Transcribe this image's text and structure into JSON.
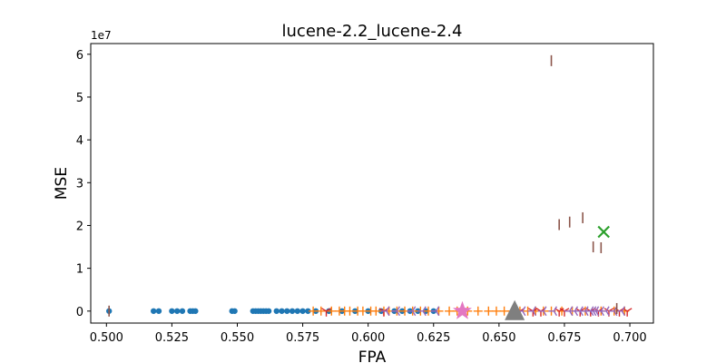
{
  "chart_data": {
    "type": "scatter",
    "title": "lucene-2.2_lucene-2.4",
    "xlabel": "FPA",
    "ylabel": "MSE",
    "y_offset_text": "1e7",
    "xlim": [
      0.494,
      0.709
    ],
    "ylim": [
      -2800000,
      62500000
    ],
    "x_ticks": [
      0.5,
      0.525,
      0.55,
      0.575,
      0.6,
      0.625,
      0.65,
      0.675,
      0.7
    ],
    "x_tick_labels": [
      "0.500",
      "0.525",
      "0.550",
      "0.575",
      "0.600",
      "0.625",
      "0.650",
      "0.675",
      "0.700"
    ],
    "y_ticks": [
      0,
      10000000,
      20000000,
      30000000,
      40000000,
      50000000,
      60000000
    ],
    "y_tick_labels": [
      "0",
      "1",
      "2",
      "3",
      "4",
      "5",
      "6"
    ],
    "grid": false,
    "series": [
      {
        "marker": "circle",
        "color": "#1f77b4",
        "points": [
          [
            0.501,
            0
          ],
          [
            0.518,
            0
          ],
          [
            0.52,
            0
          ],
          [
            0.525,
            0
          ],
          [
            0.527,
            0
          ],
          [
            0.529,
            0
          ],
          [
            0.532,
            0
          ],
          [
            0.533,
            0
          ],
          [
            0.534,
            0
          ],
          [
            0.548,
            0
          ],
          [
            0.549,
            0
          ],
          [
            0.556,
            0
          ],
          [
            0.557,
            0
          ],
          [
            0.558,
            0
          ],
          [
            0.559,
            0
          ],
          [
            0.56,
            0
          ],
          [
            0.561,
            0
          ],
          [
            0.562,
            0
          ],
          [
            0.565,
            0
          ],
          [
            0.567,
            0
          ],
          [
            0.569,
            0
          ],
          [
            0.571,
            0
          ],
          [
            0.573,
            0
          ],
          [
            0.575,
            0
          ],
          [
            0.577,
            0
          ],
          [
            0.58,
            0
          ],
          [
            0.585,
            0
          ],
          [
            0.59,
            0
          ],
          [
            0.595,
            0
          ],
          [
            0.6,
            0
          ],
          [
            0.605,
            0
          ],
          [
            0.61,
            0
          ],
          [
            0.613,
            0
          ],
          [
            0.616,
            0
          ],
          [
            0.619,
            0
          ],
          [
            0.622,
            0
          ],
          [
            0.625,
            0
          ]
        ]
      },
      {
        "marker": "plus",
        "color": "#ff7f0e",
        "points": [
          [
            0.579,
            0
          ],
          [
            0.582,
            0
          ],
          [
            0.586,
            0
          ],
          [
            0.589,
            0
          ],
          [
            0.591,
            0
          ],
          [
            0.593,
            0
          ],
          [
            0.596,
            0
          ],
          [
            0.598,
            0
          ],
          [
            0.601,
            0
          ],
          [
            0.603,
            0
          ],
          [
            0.606,
            0
          ],
          [
            0.608,
            0
          ],
          [
            0.611,
            0
          ],
          [
            0.614,
            0
          ],
          [
            0.617,
            0
          ],
          [
            0.62,
            0
          ],
          [
            0.623,
            0
          ],
          [
            0.627,
            0
          ],
          [
            0.631,
            0
          ],
          [
            0.634,
            0
          ],
          [
            0.638,
            0
          ],
          [
            0.642,
            0
          ],
          [
            0.646,
            0
          ],
          [
            0.649,
            0
          ],
          [
            0.652,
            0
          ],
          [
            0.655,
            0
          ],
          [
            0.658,
            0
          ],
          [
            0.661,
            0
          ],
          [
            0.664,
            0
          ],
          [
            0.667,
            0
          ],
          [
            0.67,
            0
          ],
          [
            0.674,
            0
          ],
          [
            0.678,
            0
          ],
          [
            0.683,
            0
          ],
          [
            0.689,
            0
          ],
          [
            0.694,
            0
          ],
          [
            0.698,
            0
          ]
        ]
      },
      {
        "marker": "x",
        "color": "#2ca02c",
        "points": [
          [
            0.69,
            18500000
          ]
        ]
      },
      {
        "marker": "tri_down",
        "color": "#d62728",
        "points": [
          [
            0.584,
            0
          ],
          [
            0.606,
            0
          ],
          [
            0.658,
            0
          ],
          [
            0.663,
            0
          ],
          [
            0.666,
            0
          ],
          [
            0.673,
            0
          ],
          [
            0.675,
            0
          ],
          [
            0.681,
            0
          ],
          [
            0.685,
            0
          ],
          [
            0.688,
            0
          ],
          [
            0.692,
            0
          ],
          [
            0.696,
            0
          ],
          [
            0.699,
            0
          ]
        ]
      },
      {
        "marker": "tri_left",
        "color": "#9467bd",
        "points": [
          [
            0.607,
            0
          ],
          [
            0.611,
            0
          ],
          [
            0.617,
            0
          ],
          [
            0.621,
            0
          ],
          [
            0.626,
            0
          ],
          [
            0.659,
            0
          ],
          [
            0.663,
            0
          ],
          [
            0.667,
            0
          ],
          [
            0.671,
            0
          ],
          [
            0.677,
            0
          ],
          [
            0.679,
            0
          ],
          [
            0.681,
            0
          ],
          [
            0.683,
            0
          ],
          [
            0.685,
            0
          ],
          [
            0.686,
            0
          ],
          [
            0.687,
            0
          ],
          [
            0.689,
            0
          ],
          [
            0.691,
            0
          ],
          [
            0.694,
            0
          ],
          [
            0.697,
            0
          ]
        ]
      },
      {
        "marker": "vline",
        "color": "#8c564b",
        "points": [
          [
            0.501,
            0
          ],
          [
            0.67,
            58500000
          ],
          [
            0.673,
            20200000
          ],
          [
            0.677,
            20800000
          ],
          [
            0.682,
            21800000
          ],
          [
            0.686,
            15000000
          ],
          [
            0.689,
            14800000
          ],
          [
            0.695,
            600000
          ]
        ]
      },
      {
        "marker": "star",
        "color": "#e377c2",
        "points": [
          [
            0.636,
            0
          ]
        ]
      },
      {
        "marker": "triangle",
        "color": "#7f7f7f",
        "points": [
          [
            0.656,
            0
          ]
        ]
      }
    ]
  }
}
